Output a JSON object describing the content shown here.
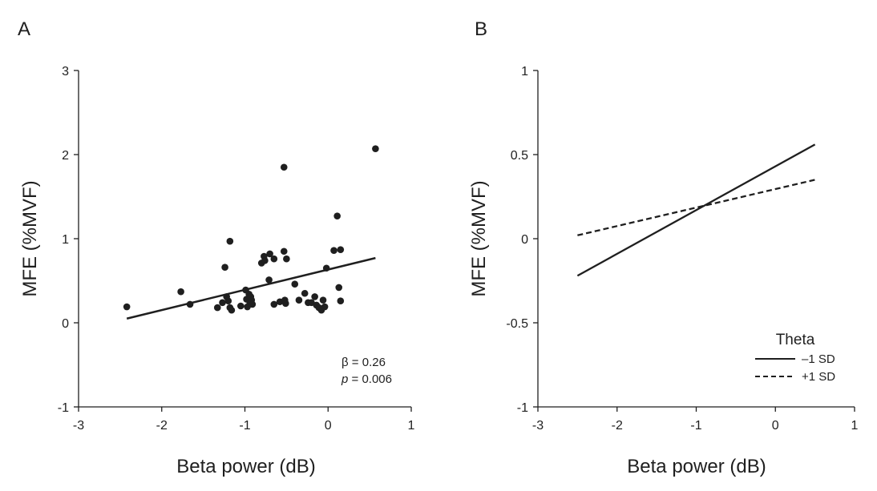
{
  "chart_data": [
    {
      "panel": "A",
      "type": "scatter",
      "xlabel": "Beta power (dB)",
      "ylabel": "MFE (%MVF)",
      "xlim": [
        -3,
        1
      ],
      "ylim": [
        -1,
        3
      ],
      "xticks": [
        "-3",
        "-2",
        "-1",
        "0",
        "1"
      ],
      "xtick_values": [
        -3,
        -2,
        -1,
        0,
        1
      ],
      "yticks": [
        "-1",
        "0",
        "1",
        "2",
        "3"
      ],
      "ytick_values": [
        -1,
        0,
        1,
        2,
        3
      ],
      "grid": false,
      "color": "#1f1f1f",
      "points": [
        [
          -2.42,
          0.19
        ],
        [
          -1.77,
          0.37
        ],
        [
          -1.66,
          0.22
        ],
        [
          -1.33,
          0.18
        ],
        [
          -1.27,
          0.24
        ],
        [
          -1.24,
          0.66
        ],
        [
          -1.22,
          0.31
        ],
        [
          -1.2,
          0.26
        ],
        [
          -1.18,
          0.97
        ],
        [
          -1.18,
          0.18
        ],
        [
          -1.16,
          0.15
        ],
        [
          -1.05,
          0.2
        ],
        [
          -0.99,
          0.39
        ],
        [
          -0.98,
          0.28
        ],
        [
          -0.97,
          0.19
        ],
        [
          -0.95,
          0.34
        ],
        [
          -0.94,
          0.23
        ],
        [
          -0.93,
          0.31
        ],
        [
          -0.92,
          0.27
        ],
        [
          -0.91,
          0.22
        ],
        [
          -0.8,
          0.71
        ],
        [
          -0.77,
          0.79
        ],
        [
          -0.76,
          0.74
        ],
        [
          -0.71,
          0.51
        ],
        [
          -0.7,
          0.82
        ],
        [
          -0.65,
          0.22
        ],
        [
          -0.65,
          0.76
        ],
        [
          -0.58,
          0.25
        ],
        [
          -0.53,
          1.85
        ],
        [
          -0.53,
          0.85
        ],
        [
          -0.52,
          0.27
        ],
        [
          -0.51,
          0.23
        ],
        [
          -0.5,
          0.76
        ],
        [
          -0.4,
          0.46
        ],
        [
          -0.35,
          0.27
        ],
        [
          -0.28,
          0.35
        ],
        [
          -0.24,
          0.24
        ],
        [
          -0.2,
          0.24
        ],
        [
          -0.16,
          0.31
        ],
        [
          -0.14,
          0.21
        ],
        [
          -0.11,
          0.18
        ],
        [
          -0.08,
          0.15
        ],
        [
          -0.06,
          0.27
        ],
        [
          -0.04,
          0.19
        ],
        [
          -0.02,
          0.65
        ],
        [
          0.07,
          0.86
        ],
        [
          0.11,
          1.27
        ],
        [
          0.13,
          0.42
        ],
        [
          0.15,
          0.26
        ],
        [
          0.15,
          0.87
        ],
        [
          0.57,
          2.07
        ]
      ],
      "fit_line": {
        "x": [
          -2.42,
          0.57
        ],
        "y": [
          0.05,
          0.77
        ]
      },
      "annotation": {
        "beta": "β = 0.26",
        "p_symbol": "p",
        "p_value": " = 0.006"
      }
    },
    {
      "panel": "B",
      "type": "line",
      "xlabel": "Beta power (dB)",
      "ylabel": "MFE (%MVF)",
      "xlim": [
        -3,
        1
      ],
      "ylim": [
        -1,
        1
      ],
      "xticks": [
        "-3",
        "-2",
        "-1",
        "0",
        "1"
      ],
      "xtick_values": [
        -3,
        -2,
        -1,
        0,
        1
      ],
      "yticks": [
        "-1",
        "-0.5",
        "0",
        "0.5",
        "1"
      ],
      "ytick_values": [
        -1,
        -0.5,
        0,
        0.5,
        1
      ],
      "grid": false,
      "legend": {
        "title": "Theta",
        "placement": "bottom-right"
      },
      "series": [
        {
          "name": "–1 SD",
          "style": "solid",
          "x": [
            -2.5,
            0.5
          ],
          "y": [
            -0.22,
            0.56
          ]
        },
        {
          "name": "+1 SD",
          "style": "dashed",
          "x": [
            -2.5,
            0.5
          ],
          "y": [
            0.02,
            0.35
          ]
        }
      ]
    }
  ]
}
